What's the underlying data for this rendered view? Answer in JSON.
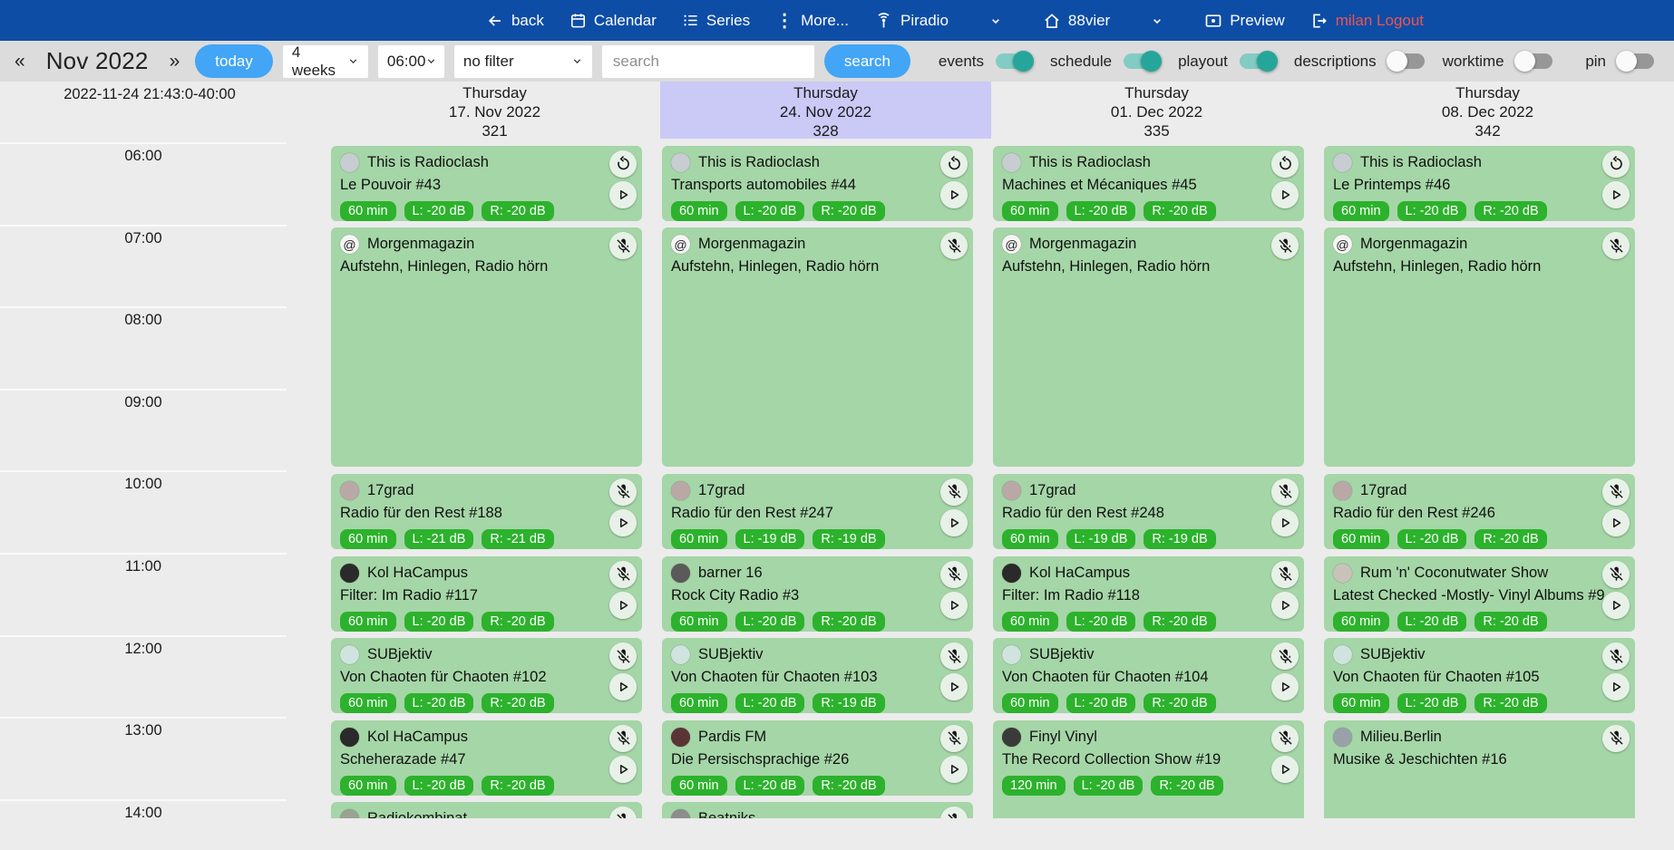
{
  "colors": {
    "navbar": "#0d4da6",
    "accent_blue": "#42a5f5",
    "toggle_on": "#26a69a",
    "logout_red": "#ef5350",
    "card_green": "#a5d6a7",
    "badge_green": "#2cb22c",
    "highlight_lavender": "#cbc9f6"
  },
  "nav": {
    "back": "back",
    "calendar": "Calendar",
    "series": "Series",
    "more": "More...",
    "station": "Piradio",
    "studio": "88vier",
    "preview": "Preview",
    "logout": "milan Logout"
  },
  "toolbar": {
    "prev": "«",
    "month": "Nov 2022",
    "next": "»",
    "today": "today",
    "range": "4 weeks",
    "start_time": "06:00",
    "filter": "no filter",
    "search_placeholder": "search",
    "search_button": "search",
    "toggles": [
      {
        "label": "events",
        "on": true
      },
      {
        "label": "schedule",
        "on": true
      },
      {
        "label": "playout",
        "on": true
      },
      {
        "label": "descriptions",
        "on": false
      },
      {
        "label": "worktime",
        "on": false
      },
      {
        "label": "pin",
        "on": false
      }
    ]
  },
  "calendar": {
    "timestamp": "2022-11-24 21:43:0-40:00",
    "hours": [
      "06:00",
      "07:00",
      "08:00",
      "09:00",
      "10:00",
      "11:00",
      "12:00",
      "13:00",
      "14:00"
    ],
    "columns": [
      {
        "weekday": "Thursday",
        "date": "17. Nov 2022",
        "count": "321",
        "highlighted": false,
        "events": [
          {
            "show": "This is Radioclash",
            "episode": "Le Pouvoir #43",
            "start": "06:00",
            "duration_min": 60,
            "badges": [
              "60 min",
              "L: -20 dB",
              "R: -20 dB"
            ],
            "top_icon": "replay",
            "play": true,
            "avatar": {
              "color": "#c7cdd1",
              "text": ""
            }
          },
          {
            "show": "Morgenmagazin",
            "episode": "Aufstehn, Hinlegen, Radio hörn",
            "start": "07:00",
            "duration_min": 180,
            "badges": [],
            "top_icon": "mic-off",
            "play": false,
            "avatar": {
              "color": "#f5f5f5",
              "text": "@"
            }
          },
          {
            "show": "17grad",
            "episode": "Radio für den Rest #188",
            "start": "10:00",
            "duration_min": 60,
            "badges": [
              "60 min",
              "L: -21 dB",
              "R: -21 dB"
            ],
            "top_icon": "mic-off",
            "play": true,
            "avatar": {
              "color": "#b9a8a6",
              "text": ""
            }
          },
          {
            "show": "Kol HaCampus",
            "episode": "Filter: Im Radio #117",
            "start": "11:00",
            "duration_min": 60,
            "badges": [
              "60 min",
              "L: -20 dB",
              "R: -20 dB"
            ],
            "top_icon": "mic-off",
            "play": true,
            "avatar": {
              "color": "#2a2a2a",
              "text": ""
            }
          },
          {
            "show": "SUBjektiv",
            "episode": "Von Chaoten für Chaoten #102",
            "start": "12:00",
            "duration_min": 60,
            "badges": [
              "60 min",
              "L: -20 dB",
              "R: -20 dB"
            ],
            "top_icon": "mic-off",
            "play": true,
            "avatar": {
              "color": "#cfe3df",
              "text": ""
            }
          },
          {
            "show": "Kol HaCampus",
            "episode": "Scheherazade #47",
            "start": "13:00",
            "duration_min": 60,
            "badges": [
              "60 min",
              "L: -20 dB",
              "R: -20 dB"
            ],
            "top_icon": "mic-off",
            "play": true,
            "avatar": {
              "color": "#2a2a2a",
              "text": ""
            }
          },
          {
            "show": "Radiokombinat",
            "episode": "",
            "start": "14:00",
            "duration_min": 60,
            "badges": [],
            "top_icon": "mic-off",
            "play": false,
            "avatar": {
              "color": "#9aa392",
              "text": ""
            }
          }
        ]
      },
      {
        "weekday": "Thursday",
        "date": "24. Nov 2022",
        "count": "328",
        "highlighted": true,
        "events": [
          {
            "show": "This is Radioclash",
            "episode": "Transports automobiles #44",
            "start": "06:00",
            "duration_min": 60,
            "badges": [
              "60 min",
              "L: -20 dB",
              "R: -20 dB"
            ],
            "top_icon": "replay",
            "play": true,
            "avatar": {
              "color": "#c7cdd1",
              "text": ""
            }
          },
          {
            "show": "Morgenmagazin",
            "episode": "Aufstehn, Hinlegen, Radio hörn",
            "start": "07:00",
            "duration_min": 180,
            "badges": [],
            "top_icon": "mic-off",
            "play": false,
            "avatar": {
              "color": "#f5f5f5",
              "text": "@"
            }
          },
          {
            "show": "17grad",
            "episode": "Radio für den Rest #247",
            "start": "10:00",
            "duration_min": 60,
            "badges": [
              "60 min",
              "L: -19 dB",
              "R: -19 dB"
            ],
            "top_icon": "mic-off",
            "play": true,
            "avatar": {
              "color": "#b9a8a6",
              "text": ""
            }
          },
          {
            "show": "barner 16",
            "episode": "Rock City Radio #3",
            "start": "11:00",
            "duration_min": 60,
            "badges": [
              "60 min",
              "L: -20 dB",
              "R: -20 dB"
            ],
            "top_icon": "mic-off",
            "play": true,
            "avatar": {
              "color": "#5a5a5a",
              "text": ""
            }
          },
          {
            "show": "SUBjektiv",
            "episode": "Von Chaoten für Chaoten #103",
            "start": "12:00",
            "duration_min": 60,
            "badges": [
              "60 min",
              "L: -20 dB",
              "R: -19 dB"
            ],
            "top_icon": "mic-off",
            "play": true,
            "avatar": {
              "color": "#cfe3df",
              "text": ""
            }
          },
          {
            "show": "Pardis FM",
            "episode": "Die Persischsprachige #26",
            "start": "13:00",
            "duration_min": 60,
            "badges": [
              "60 min",
              "L: -20 dB",
              "R: -20 dB"
            ],
            "top_icon": "mic-off",
            "play": true,
            "avatar": {
              "color": "#5a3535",
              "text": ""
            }
          },
          {
            "show": "Beatniks",
            "episode": "",
            "start": "14:00",
            "duration_min": 60,
            "badges": [],
            "top_icon": "mic-off",
            "play": false,
            "avatar": {
              "color": "#8d8d8d",
              "text": ""
            }
          }
        ]
      },
      {
        "weekday": "Thursday",
        "date": "01. Dec 2022",
        "count": "335",
        "highlighted": false,
        "events": [
          {
            "show": "This is Radioclash",
            "episode": "Machines et Mécaniques #45",
            "start": "06:00",
            "duration_min": 60,
            "badges": [
              "60 min",
              "L: -20 dB",
              "R: -20 dB"
            ],
            "top_icon": "replay",
            "play": true,
            "avatar": {
              "color": "#c7cdd1",
              "text": ""
            }
          },
          {
            "show": "Morgenmagazin",
            "episode": "Aufstehn, Hinlegen, Radio hörn",
            "start": "07:00",
            "duration_min": 180,
            "badges": [],
            "top_icon": "mic-off",
            "play": false,
            "avatar": {
              "color": "#f5f5f5",
              "text": "@"
            }
          },
          {
            "show": "17grad",
            "episode": "Radio für den Rest #248",
            "start": "10:00",
            "duration_min": 60,
            "badges": [
              "60 min",
              "L: -19 dB",
              "R: -19 dB"
            ],
            "top_icon": "mic-off",
            "play": true,
            "avatar": {
              "color": "#b9a8a6",
              "text": ""
            }
          },
          {
            "show": "Kol HaCampus",
            "episode": "Filter: Im Radio #118",
            "start": "11:00",
            "duration_min": 60,
            "badges": [
              "60 min",
              "L: -20 dB",
              "R: -20 dB"
            ],
            "top_icon": "mic-off",
            "play": true,
            "avatar": {
              "color": "#2a2a2a",
              "text": ""
            }
          },
          {
            "show": "SUBjektiv",
            "episode": "Von Chaoten für Chaoten #104",
            "start": "12:00",
            "duration_min": 60,
            "badges": [
              "60 min",
              "L: -20 dB",
              "R: -20 dB"
            ],
            "top_icon": "mic-off",
            "play": true,
            "avatar": {
              "color": "#cfe3df",
              "text": ""
            }
          },
          {
            "show": "Finyl Vinyl",
            "episode": "The Record Collection Show #19",
            "start": "13:00",
            "duration_min": 120,
            "badges": [
              "120 min",
              "L: -20 dB",
              "R: -20 dB"
            ],
            "top_icon": "mic-off",
            "play": true,
            "avatar": {
              "color": "#3a3a3a",
              "text": ""
            }
          }
        ]
      },
      {
        "weekday": "Thursday",
        "date": "08. Dec 2022",
        "count": "342",
        "highlighted": false,
        "events": [
          {
            "show": "This is Radioclash",
            "episode": "Le Printemps #46",
            "start": "06:00",
            "duration_min": 60,
            "badges": [
              "60 min",
              "L: -20 dB",
              "R: -20 dB"
            ],
            "top_icon": "replay",
            "play": true,
            "avatar": {
              "color": "#c7cdd1",
              "text": ""
            }
          },
          {
            "show": "Morgenmagazin",
            "episode": "Aufstehn, Hinlegen, Radio hörn",
            "start": "07:00",
            "duration_min": 180,
            "badges": [],
            "top_icon": "mic-off",
            "play": false,
            "avatar": {
              "color": "#f5f5f5",
              "text": "@"
            }
          },
          {
            "show": "17grad",
            "episode": "Radio für den Rest #246",
            "start": "10:00",
            "duration_min": 60,
            "badges": [
              "60 min",
              "L: -20 dB",
              "R: -20 dB"
            ],
            "top_icon": "mic-off",
            "play": true,
            "avatar": {
              "color": "#b9a8a6",
              "text": ""
            }
          },
          {
            "show": "Rum 'n' Coconutwater Show",
            "episode": "Latest Checked -Mostly- Vinyl Albums #9",
            "start": "11:00",
            "duration_min": 60,
            "badges": [
              "60 min",
              "L: -20 dB",
              "R: -20 dB"
            ],
            "top_icon": "mic-off",
            "play": true,
            "avatar": {
              "color": "#c9c2b8",
              "text": ""
            }
          },
          {
            "show": "SUBjektiv",
            "episode": "Von Chaoten für Chaoten #105",
            "start": "12:00",
            "duration_min": 60,
            "badges": [
              "60 min",
              "L: -20 dB",
              "R: -20 dB"
            ],
            "top_icon": "mic-off",
            "play": true,
            "avatar": {
              "color": "#cfe3df",
              "text": ""
            }
          },
          {
            "show": "Milieu.Berlin",
            "episode": "Musike & Jeschichten #16",
            "start": "13:00",
            "duration_min": 120,
            "badges": [],
            "top_icon": "mic-off",
            "play": false,
            "avatar": {
              "color": "#9aa0a8",
              "text": ""
            }
          }
        ]
      }
    ]
  }
}
